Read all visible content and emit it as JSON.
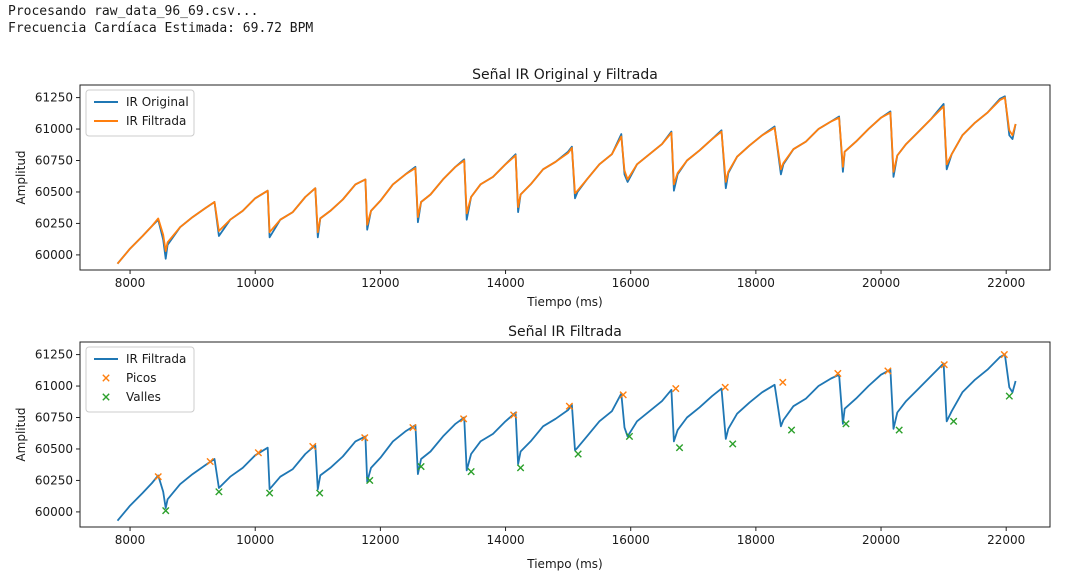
{
  "console": {
    "line1": "Procesando raw_data_96_69.csv...",
    "line2": "Frecuencia Cardíaca Estimada: 69.72 BPM"
  },
  "colors": {
    "original": "#1f77b4",
    "filtered_top": "#ff7f0e",
    "filtered_bottom": "#1f77b4",
    "peaks": "#ff7f0e",
    "valleys": "#2ca02c"
  },
  "chart_data": [
    {
      "type": "line",
      "title": "Señal IR Original y Filtrada",
      "xlabel": "Tiempo (ms)",
      "ylabel": "Amplitud",
      "xlim": [
        7200,
        22700
      ],
      "ylim": [
        59880,
        61350
      ],
      "xticks": [
        8000,
        10000,
        12000,
        14000,
        16000,
        18000,
        20000,
        22000
      ],
      "xtick_labels": [
        "8000",
        "10000",
        "12000",
        "14000",
        "16000",
        "18000",
        "20000",
        "22000"
      ],
      "yticks": [
        60000,
        60250,
        60500,
        60750,
        61000,
        61250
      ],
      "ytick_labels": [
        "60000",
        "60250",
        "60500",
        "60750",
        "61000",
        "61250"
      ],
      "legend_position": "top-left",
      "grid": false,
      "series": [
        {
          "name": "IR Original",
          "color_key": "original",
          "x": [
            7800,
            8000,
            8200,
            8350,
            8450,
            8530,
            8570,
            8600,
            8800,
            9000,
            9200,
            9350,
            9420,
            9600,
            9800,
            10000,
            10200,
            10230,
            10400,
            10600,
            10800,
            10960,
            11000,
            11040,
            11200,
            11400,
            11600,
            11760,
            11790,
            11850,
            12000,
            12200,
            12400,
            12560,
            12600,
            12650,
            12800,
            13000,
            13200,
            13340,
            13380,
            13450,
            13600,
            13800,
            14000,
            14160,
            14200,
            14240,
            14400,
            14600,
            14800,
            15000,
            15060,
            15110,
            15150,
            15300,
            15500,
            15700,
            15850,
            15900,
            15950,
            16100,
            16300,
            16500,
            16650,
            16690,
            16750,
            16900,
            17100,
            17300,
            17450,
            17520,
            17560,
            17700,
            17900,
            18100,
            18300,
            18400,
            18440,
            18600,
            18800,
            19000,
            19200,
            19330,
            19390,
            19420,
            19600,
            19800,
            20000,
            20150,
            20200,
            20260,
            20400,
            20600,
            20800,
            21000,
            21050,
            21090,
            21130,
            21300,
            21500,
            21700,
            21900,
            21980,
            22050,
            22100,
            22150
          ],
          "y": [
            59930,
            60050,
            60150,
            60230,
            60280,
            60120,
            59970,
            60080,
            60220,
            60300,
            60370,
            60420,
            60150,
            60280,
            60350,
            60450,
            60510,
            60140,
            60280,
            60340,
            60460,
            60530,
            60140,
            60290,
            60350,
            60440,
            60560,
            60600,
            60200,
            60350,
            60430,
            60560,
            60640,
            60700,
            60260,
            60420,
            60480,
            60600,
            60700,
            60760,
            60280,
            60460,
            60560,
            60620,
            60720,
            60800,
            60340,
            60480,
            60560,
            60680,
            60740,
            60820,
            60860,
            60450,
            60500,
            60600,
            60720,
            60800,
            60960,
            60640,
            60580,
            60720,
            60800,
            60880,
            60980,
            60510,
            60640,
            60750,
            60830,
            60920,
            60990,
            60530,
            60650,
            60780,
            60870,
            60950,
            61020,
            60640,
            60720,
            60840,
            60900,
            61000,
            61060,
            61100,
            60660,
            60820,
            60900,
            61000,
            61090,
            61140,
            60620,
            60790,
            60880,
            60980,
            61080,
            61200,
            60680,
            60740,
            60800,
            60950,
            61050,
            61130,
            61240,
            61260,
            60950,
            60920,
            61040
          ]
        },
        {
          "name": "IR Filtrada",
          "color_key": "filtered_top",
          "x": [
            7800,
            8000,
            8200,
            8350,
            8450,
            8530,
            8570,
            8600,
            8800,
            9000,
            9200,
            9350,
            9420,
            9600,
            9800,
            10000,
            10200,
            10230,
            10400,
            10600,
            10800,
            10960,
            11000,
            11040,
            11200,
            11400,
            11600,
            11760,
            11790,
            11850,
            12000,
            12200,
            12400,
            12560,
            12600,
            12650,
            12800,
            13000,
            13200,
            13340,
            13380,
            13450,
            13600,
            13800,
            14000,
            14160,
            14200,
            14240,
            14400,
            14600,
            14800,
            15000,
            15060,
            15110,
            15150,
            15300,
            15500,
            15700,
            15850,
            15900,
            15950,
            16100,
            16300,
            16500,
            16650,
            16690,
            16750,
            16900,
            17100,
            17300,
            17450,
            17520,
            17560,
            17700,
            17900,
            18100,
            18300,
            18400,
            18440,
            18600,
            18800,
            19000,
            19200,
            19330,
            19390,
            19420,
            19600,
            19800,
            20000,
            20150,
            20200,
            20260,
            20400,
            20600,
            20800,
            21000,
            21050,
            21090,
            21130,
            21300,
            21500,
            21700,
            21900,
            21980,
            22050,
            22100,
            22150
          ],
          "y": [
            59930,
            60050,
            60150,
            60230,
            60290,
            60160,
            60030,
            60100,
            60220,
            60300,
            60370,
            60420,
            60190,
            60280,
            60350,
            60450,
            60510,
            60180,
            60280,
            60340,
            60460,
            60530,
            60180,
            60290,
            60350,
            60440,
            60560,
            60600,
            60240,
            60350,
            60430,
            60560,
            60640,
            60690,
            60300,
            60420,
            60480,
            60600,
            60700,
            60750,
            60330,
            60460,
            60560,
            60620,
            60720,
            60790,
            60380,
            60480,
            60560,
            60680,
            60740,
            60810,
            60850,
            60490,
            60510,
            60600,
            60720,
            60800,
            60940,
            60670,
            60600,
            60720,
            60800,
            60880,
            60970,
            60560,
            60650,
            60750,
            60830,
            60920,
            60980,
            60580,
            60660,
            60780,
            60870,
            60950,
            61010,
            60680,
            60730,
            60840,
            60900,
            61000,
            61060,
            61090,
            60700,
            60820,
            60900,
            61000,
            61090,
            61130,
            60660,
            60790,
            60880,
            60980,
            61080,
            61180,
            60720,
            60760,
            60800,
            60950,
            61050,
            61130,
            61230,
            61250,
            60990,
            60950,
            61040
          ]
        }
      ]
    },
    {
      "type": "line",
      "title": "Señal IR Filtrada",
      "xlabel": "Tiempo (ms)",
      "ylabel": "Amplitud",
      "xlim": [
        7200,
        22700
      ],
      "ylim": [
        59880,
        61350
      ],
      "xticks": [
        8000,
        10000,
        12000,
        14000,
        16000,
        18000,
        20000,
        22000
      ],
      "xtick_labels": [
        "8000",
        "10000",
        "12000",
        "14000",
        "16000",
        "18000",
        "20000",
        "22000"
      ],
      "yticks": [
        60000,
        60250,
        60500,
        60750,
        61000,
        61250
      ],
      "ytick_labels": [
        "60000",
        "60250",
        "60500",
        "60750",
        "61000",
        "61250"
      ],
      "legend_position": "top-left",
      "grid": false,
      "series": [
        {
          "name": "IR Filtrada",
          "color_key": "filtered_bottom",
          "kind": "line",
          "x": [
            7800,
            8000,
            8200,
            8350,
            8450,
            8530,
            8570,
            8600,
            8800,
            9000,
            9200,
            9350,
            9420,
            9600,
            9800,
            10000,
            10200,
            10230,
            10400,
            10600,
            10800,
            10960,
            11000,
            11040,
            11200,
            11400,
            11600,
            11760,
            11790,
            11850,
            12000,
            12200,
            12400,
            12560,
            12600,
            12650,
            12800,
            13000,
            13200,
            13340,
            13380,
            13450,
            13600,
            13800,
            14000,
            14160,
            14200,
            14240,
            14400,
            14600,
            14800,
            15000,
            15060,
            15110,
            15150,
            15300,
            15500,
            15700,
            15850,
            15900,
            15950,
            16100,
            16300,
            16500,
            16650,
            16690,
            16750,
            16900,
            17100,
            17300,
            17450,
            17520,
            17560,
            17700,
            17900,
            18100,
            18300,
            18400,
            18440,
            18600,
            18800,
            19000,
            19200,
            19330,
            19390,
            19420,
            19600,
            19800,
            20000,
            20150,
            20200,
            20260,
            20400,
            20600,
            20800,
            21000,
            21050,
            21090,
            21130,
            21300,
            21500,
            21700,
            21900,
            21980,
            22050,
            22100,
            22150
          ],
          "y": [
            59930,
            60050,
            60150,
            60230,
            60290,
            60160,
            60030,
            60100,
            60220,
            60300,
            60370,
            60420,
            60190,
            60280,
            60350,
            60450,
            60510,
            60180,
            60280,
            60340,
            60460,
            60530,
            60180,
            60290,
            60350,
            60440,
            60560,
            60600,
            60240,
            60350,
            60430,
            60560,
            60640,
            60690,
            60300,
            60420,
            60480,
            60600,
            60700,
            60750,
            60330,
            60460,
            60560,
            60620,
            60720,
            60790,
            60380,
            60480,
            60560,
            60680,
            60740,
            60810,
            60850,
            60490,
            60510,
            60600,
            60720,
            60800,
            60940,
            60670,
            60600,
            60720,
            60800,
            60880,
            60970,
            60560,
            60650,
            60750,
            60830,
            60920,
            60980,
            60580,
            60660,
            60780,
            60870,
            60950,
            61010,
            60680,
            60730,
            60840,
            60900,
            61000,
            61060,
            61090,
            60700,
            60820,
            60900,
            61000,
            61090,
            61130,
            60660,
            60790,
            60880,
            60980,
            61080,
            61180,
            60720,
            60760,
            60800,
            60950,
            61050,
            61130,
            61230,
            61250,
            60990,
            60950,
            61040
          ]
        },
        {
          "name": "Picos",
          "color_key": "peaks",
          "kind": "markers",
          "x": [
            8450,
            9280,
            10050,
            10920,
            11750,
            12520,
            13330,
            14130,
            15020,
            15880,
            16720,
            17510,
            18430,
            19310,
            20110,
            21010,
            21970
          ],
          "y": [
            60280,
            60400,
            60470,
            60520,
            60590,
            60670,
            60740,
            60770,
            60840,
            60930,
            60980,
            60990,
            61030,
            61100,
            61120,
            61170,
            61250
          ]
        },
        {
          "name": "Valles",
          "color_key": "valleys",
          "kind": "markers",
          "x": [
            8570,
            9420,
            10230,
            11030,
            11830,
            12650,
            13450,
            14240,
            15160,
            15980,
            16780,
            17630,
            18570,
            19440,
            20290,
            21160,
            22050
          ],
          "y": [
            60010,
            60160,
            60150,
            60150,
            60250,
            60360,
            60320,
            60350,
            60460,
            60600,
            60510,
            60540,
            60650,
            60700,
            60650,
            60720,
            60920
          ]
        }
      ]
    }
  ]
}
